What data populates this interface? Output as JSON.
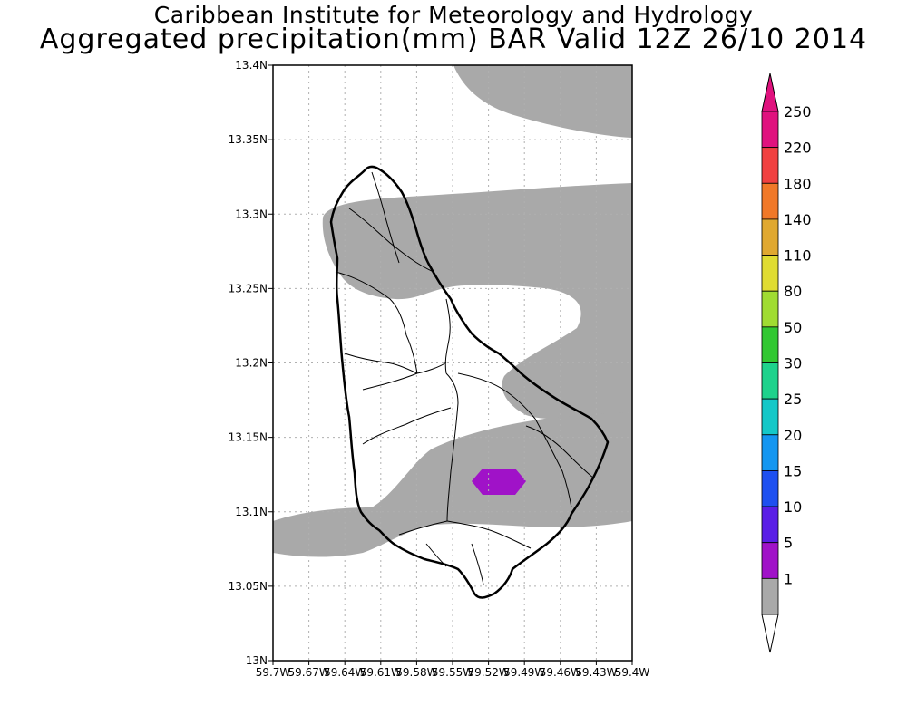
{
  "header": {
    "line1": "Caribbean Institute for Meteorology and Hydrology",
    "line2": "Aggregated precipitation(mm) BAR Valid 12Z 26/10 2014"
  },
  "map": {
    "lat_range": [
      13.0,
      13.4
    ],
    "lon_range": [
      -59.7,
      -59.4
    ],
    "lat_ticks": [
      "13N",
      "13.05N",
      "13.1N",
      "13.15N",
      "13.2N",
      "13.25N",
      "13.3N",
      "13.35N",
      "13.4N"
    ],
    "lon_ticks": [
      "59.7W",
      "59.67W",
      "59.64W",
      "59.61W",
      "59.58W",
      "59.55W",
      "59.52W",
      "59.49W",
      "59.46W",
      "59.43W",
      "59.4W"
    ],
    "grid": true,
    "features": [
      {
        "name": "1-5 mm band (north)",
        "class": "1"
      },
      {
        "name": "1-5 mm band (south)",
        "class": "1"
      },
      {
        "name": "5-10 mm cell",
        "class": "5",
        "center_lon": -59.51,
        "center_lat": 13.12
      }
    ]
  },
  "colorbar": {
    "levels": [
      {
        "label": "250",
        "color": "#e0127e"
      },
      {
        "label": "220",
        "color": "#f04040"
      },
      {
        "label": "180",
        "color": "#f07828"
      },
      {
        "label": "140",
        "color": "#e0a830"
      },
      {
        "label": "110",
        "color": "#e0dc32"
      },
      {
        "label": "80",
        "color": "#a0dc32"
      },
      {
        "label": "50",
        "color": "#32c832"
      },
      {
        "label": "30",
        "color": "#1ed28c"
      },
      {
        "label": "25",
        "color": "#14c8c8"
      },
      {
        "label": "20",
        "color": "#1496f0"
      },
      {
        "label": "15",
        "color": "#1e50f0"
      },
      {
        "label": "10",
        "color": "#5a1ee6"
      },
      {
        "label": "5",
        "color": "#a012c8"
      },
      {
        "label": "1",
        "color": "#a9a9a9"
      }
    ],
    "below_color": "#ffffff"
  }
}
